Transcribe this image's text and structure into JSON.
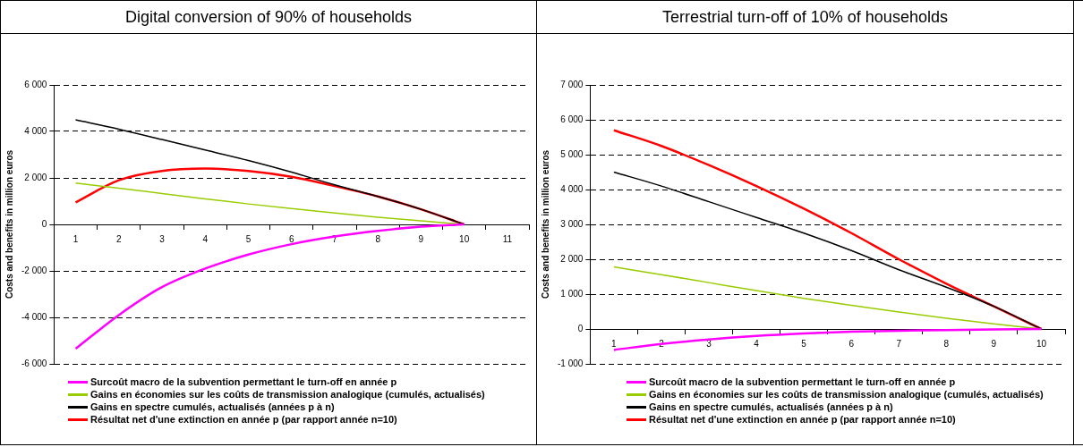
{
  "chart_data": [
    {
      "type": "line",
      "title": "Digital conversion of 90% of households",
      "ylabel": "Costs and benefits in million euros",
      "categories": [
        "1",
        "2",
        "3",
        "4",
        "5",
        "6",
        "7",
        "8",
        "9",
        "10",
        "11"
      ],
      "ylim": [
        -6000,
        6000
      ],
      "yticks": [
        {
          "value": -6000,
          "label": "-6 000"
        },
        {
          "value": -4000,
          "label": "-4 000"
        },
        {
          "value": -2000,
          "label": "-2 000"
        },
        0,
        {
          "value": 2000,
          "label": "2 000"
        },
        {
          "value": 4000,
          "label": "4 000"
        },
        {
          "value": 6000,
          "label": "6 000"
        }
      ],
      "grid": "y",
      "legend": "bottom",
      "marker": "none",
      "series": [
        {
          "name": "Surcoût macro de la subvention permettant le turn-off en année p",
          "color": "#ff00ff",
          "values": [
            -5350,
            -3900,
            -2700,
            -1900,
            -1300,
            -850,
            -520,
            -280,
            -100,
            0,
            null
          ]
        },
        {
          "name": "Gains en économies sur les coûts de transmission analogique (cumulés, actualisés)",
          "color": "#99cc00",
          "values": [
            1780,
            1560,
            1330,
            1100,
            880,
            680,
            490,
            310,
            150,
            0,
            null
          ]
        },
        {
          "name": "Gains en spectre cumulés, actualisés (années p à n)",
          "color": "#000000",
          "values": [
            4500,
            4100,
            3650,
            3200,
            2750,
            2250,
            1700,
            1200,
            650,
            0,
            null
          ]
        },
        {
          "name": "Résultat net d'une extinction en année p (par rapport année n=10)",
          "color": "#ff0000",
          "values": [
            950,
            1900,
            2300,
            2400,
            2300,
            2050,
            1650,
            1200,
            650,
            0,
            null
          ]
        }
      ]
    },
    {
      "type": "line",
      "title": "Terrestrial turn-off of 10% of households",
      "ylabel": "Costs and benefits in million euros",
      "categories": [
        "1",
        "2",
        "3",
        "4",
        "5",
        "6",
        "7",
        "8",
        "9",
        "10"
      ],
      "ylim": [
        -1000,
        7000
      ],
      "yticks": [
        {
          "value": -1000,
          "label": "-1 000"
        },
        0,
        {
          "value": 1000,
          "label": "1 000"
        },
        {
          "value": 2000,
          "label": "2 000"
        },
        {
          "value": 3000,
          "label": "3 000"
        },
        {
          "value": 4000,
          "label": "4 000"
        },
        {
          "value": 5000,
          "label": "5 000"
        },
        {
          "value": 6000,
          "label": "6 000"
        },
        {
          "value": 7000,
          "label": "7 000"
        }
      ],
      "grid": "y",
      "legend": "bottom",
      "marker": "none",
      "series": [
        {
          "name": "Surcoût macro de la subvention permettant le turn-off en année p",
          "color": "#ff00ff",
          "values": [
            -600,
            -430,
            -300,
            -200,
            -130,
            -80,
            -50,
            -30,
            -10,
            0
          ]
        },
        {
          "name": "Gains en économies sur les coûts de transmission analogique (cumulés, actualisés)",
          "color": "#99cc00",
          "values": [
            1780,
            1560,
            1330,
            1100,
            880,
            680,
            490,
            310,
            150,
            0
          ]
        },
        {
          "name": "Gains en spectre cumulés, actualisés (années p à n)",
          "color": "#000000",
          "values": [
            4500,
            4100,
            3650,
            3200,
            2750,
            2250,
            1700,
            1200,
            650,
            0
          ]
        },
        {
          "name": "Résultat net d'une extinction en année p (par rapport année n=10)",
          "color": "#ff0000",
          "values": [
            5700,
            5250,
            4700,
            4100,
            3450,
            2750,
            2000,
            1300,
            650,
            0
          ]
        }
      ]
    }
  ]
}
